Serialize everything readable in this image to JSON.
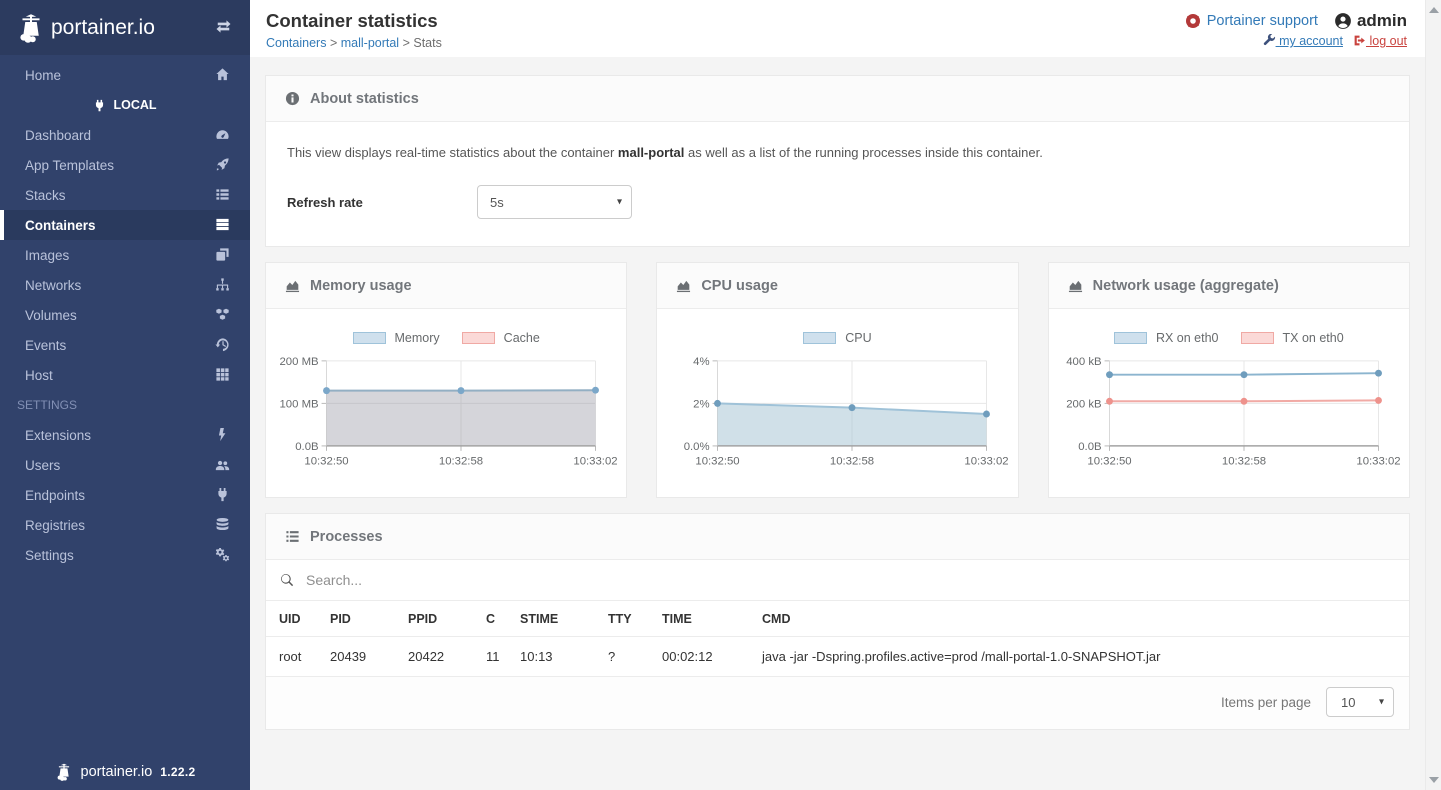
{
  "colors": {
    "sidebar_bg": "#31426b",
    "sidebar_header_bg": "#2c3b5f",
    "link_blue": "#337ab7",
    "danger_red": "#c9433e",
    "page_bg": "#f4f4f4"
  },
  "app": {
    "brand": "portainer.io",
    "version": "1.22.2"
  },
  "sidebar": {
    "home": {
      "label": "Home",
      "icon": "home"
    },
    "endpoint_label": "LOCAL",
    "items": [
      {
        "label": "Dashboard",
        "icon": "tachometer",
        "active": false
      },
      {
        "label": "App Templates",
        "icon": "rocket",
        "active": false
      },
      {
        "label": "Stacks",
        "icon": "list",
        "active": false
      },
      {
        "label": "Containers",
        "icon": "server",
        "active": true
      },
      {
        "label": "Images",
        "icon": "clone",
        "active": false
      },
      {
        "label": "Networks",
        "icon": "sitemap",
        "active": false
      },
      {
        "label": "Volumes",
        "icon": "cubes",
        "active": false
      },
      {
        "label": "Events",
        "icon": "history",
        "active": false
      },
      {
        "label": "Host",
        "icon": "grid",
        "active": false
      }
    ],
    "settings_header": "SETTINGS",
    "settings_items": [
      {
        "label": "Extensions",
        "icon": "bolt",
        "active": false
      },
      {
        "label": "Users",
        "icon": "users",
        "active": false
      },
      {
        "label": "Endpoints",
        "icon": "plug",
        "active": false
      },
      {
        "label": "Registries",
        "icon": "database",
        "active": false
      },
      {
        "label": "Settings",
        "icon": "cogs",
        "active": false
      }
    ]
  },
  "header": {
    "title": "Container statistics",
    "breadcrumb": [
      "Containers",
      "mall-portal",
      "Stats"
    ],
    "separator": ">",
    "support_label": "Portainer support",
    "username": "admin",
    "my_account_label": "my account",
    "log_out_label": "log out"
  },
  "about": {
    "title": "About statistics",
    "description_prefix": "This view displays real-time statistics about the container ",
    "container_name": "mall-portal",
    "description_suffix": " as well as a list of the running processes inside this container.",
    "refresh_rate_label": "Refresh rate",
    "refresh_rate_value": "5s"
  },
  "chart_data": [
    {
      "type": "area",
      "title": "Memory usage",
      "x": [
        "10:32:50",
        "10:32:58",
        "10:33:02"
      ],
      "xlabel": "",
      "ylabel": "",
      "ylim": [
        0,
        200
      ],
      "grid": true,
      "legend_position": "top",
      "yticks": [
        {
          "label": "200 MB",
          "value": 200
        },
        {
          "label": "100 MB",
          "value": 100
        },
        {
          "label": "0.0B",
          "value": 0
        }
      ],
      "series": [
        {
          "name": "Memory",
          "values": [
            130,
            130,
            131
          ],
          "unit": "MB",
          "line": "#93afc3",
          "fill": "rgba(150,150,162,0.40)",
          "point": "#7ba7c9",
          "legend_fill": "#cfe0ed",
          "legend_border": "#9fc3da",
          "hidden": false
        },
        {
          "name": "Cache",
          "values": [
            0,
            0,
            0
          ],
          "unit": "MB",
          "line": "#f0a9a4",
          "fill": "none",
          "point": "#ee928c",
          "legend_fill": "#fbd9d7",
          "legend_border": "#f0a9a4",
          "hidden": true
        }
      ]
    },
    {
      "type": "area",
      "title": "CPU usage",
      "x": [
        "10:32:50",
        "10:32:58",
        "10:33:02"
      ],
      "xlabel": "",
      "ylabel": "",
      "ylim": [
        0,
        4
      ],
      "grid": true,
      "legend_position": "top",
      "yticks": [
        {
          "label": "4%",
          "value": 4
        },
        {
          "label": "2%",
          "value": 2
        },
        {
          "label": "0.0%",
          "value": 0
        }
      ],
      "series": [
        {
          "name": "CPU",
          "values": [
            2.0,
            1.8,
            1.5
          ],
          "unit": "%",
          "line": "#9fc2d8",
          "fill": "rgba(151,187,205,0.45)",
          "point": "#6f9dbd",
          "legend_fill": "#cfe0ed",
          "legend_border": "#9fc3da",
          "hidden": false
        }
      ]
    },
    {
      "type": "line",
      "title": "Network usage (aggregate)",
      "x": [
        "10:32:50",
        "10:32:58",
        "10:33:02"
      ],
      "xlabel": "",
      "ylabel": "",
      "ylim": [
        0,
        400
      ],
      "grid": true,
      "legend_position": "top",
      "yticks": [
        {
          "label": "400 kB",
          "value": 400
        },
        {
          "label": "200 kB",
          "value": 200
        },
        {
          "label": "0.0B",
          "value": 0
        }
      ],
      "series": [
        {
          "name": "RX on eth0",
          "values": [
            335,
            335,
            342
          ],
          "unit": "kB",
          "line": "#8cb5cf",
          "fill": "none",
          "point": "#6f9dbd",
          "legend_fill": "#cfe0ed",
          "legend_border": "#9fc3da",
          "hidden": false
        },
        {
          "name": "TX on eth0",
          "values": [
            210,
            210,
            214
          ],
          "unit": "kB",
          "line": "#f1aaa5",
          "fill": "none",
          "point": "#ee928c",
          "legend_fill": "#fbd9d7",
          "legend_border": "#f0a9a4",
          "hidden": false
        }
      ]
    }
  ],
  "processes": {
    "title": "Processes",
    "search_placeholder": "Search...",
    "columns": [
      "UID",
      "PID",
      "PPID",
      "C",
      "STIME",
      "TTY",
      "TIME",
      "CMD"
    ],
    "rows": [
      [
        "root",
        "20439",
        "20422",
        "11",
        "10:13",
        "?",
        "00:02:12",
        "java -jar -Dspring.profiles.active=prod /mall-portal-1.0-SNAPSHOT.jar"
      ]
    ],
    "items_per_page_label": "Items per page",
    "items_per_page_value": "10"
  }
}
